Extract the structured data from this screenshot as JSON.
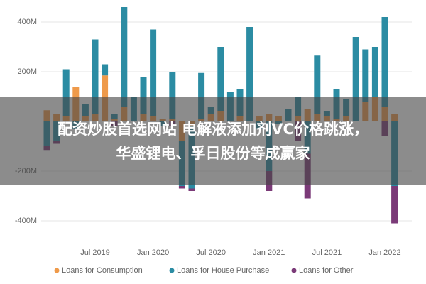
{
  "chart_data": {
    "type": "stacked-bar",
    "categories": [
      null,
      null,
      null,
      null,
      null,
      "Jul 2019",
      null,
      null,
      null,
      null,
      null,
      "Jan 2020",
      null,
      null,
      null,
      null,
      null,
      "Jul 2020",
      null,
      null,
      null,
      null,
      null,
      "Jan 2021",
      null,
      null,
      null,
      null,
      null,
      "Jul 2021",
      null,
      null,
      null,
      null,
      null,
      "Jan 2022",
      null
    ],
    "series": [
      {
        "name": "Loans for Consumption",
        "color": "#ef9a4a",
        "values": [
          45,
          30,
          20,
          140,
          20,
          30,
          185,
          10,
          60,
          0,
          30,
          20,
          10,
          10,
          -80,
          -20,
          10,
          30,
          40,
          0,
          20,
          0,
          20,
          30,
          20,
          0,
          20,
          50,
          30,
          20,
          10,
          20,
          0,
          80,
          100,
          60,
          30
        ]
      },
      {
        "name": "Loans for House Purchase",
        "color": "#2b8ca3",
        "values": [
          -100,
          -80,
          190,
          -30,
          50,
          300,
          45,
          20,
          400,
          100,
          150,
          350,
          -20,
          190,
          -180,
          -250,
          185,
          30,
          260,
          120,
          110,
          380,
          -30,
          -200,
          -10,
          50,
          80,
          -130,
          235,
          20,
          120,
          70,
          340,
          210,
          200,
          360,
          -260
        ]
      },
      {
        "name": "Loans for Other",
        "color": "#7b3a78",
        "values": [
          -15,
          -10,
          0,
          0,
          0,
          0,
          0,
          -20,
          0,
          0,
          0,
          0,
          0,
          -20,
          -10,
          -10,
          0,
          0,
          0,
          0,
          0,
          0,
          0,
          -80,
          0,
          0,
          -80,
          -180,
          0,
          0,
          0,
          0,
          0,
          0,
          0,
          -60,
          -150
        ]
      }
    ],
    "ylim": [
      -480,
      470
    ],
    "yticks": [
      {
        "value": -400,
        "label": "-400M"
      },
      {
        "value": -200,
        "label": "-200M"
      },
      {
        "value": 200,
        "label": "200M"
      },
      {
        "value": 400,
        "label": "400M"
      }
    ],
    "grid": true
  },
  "overlay": {
    "lines": [
      "配资炒股首选网站 电解液添加剂VC价格跳涨，",
      "华盛锂电、孚日股份等成赢家"
    ]
  }
}
